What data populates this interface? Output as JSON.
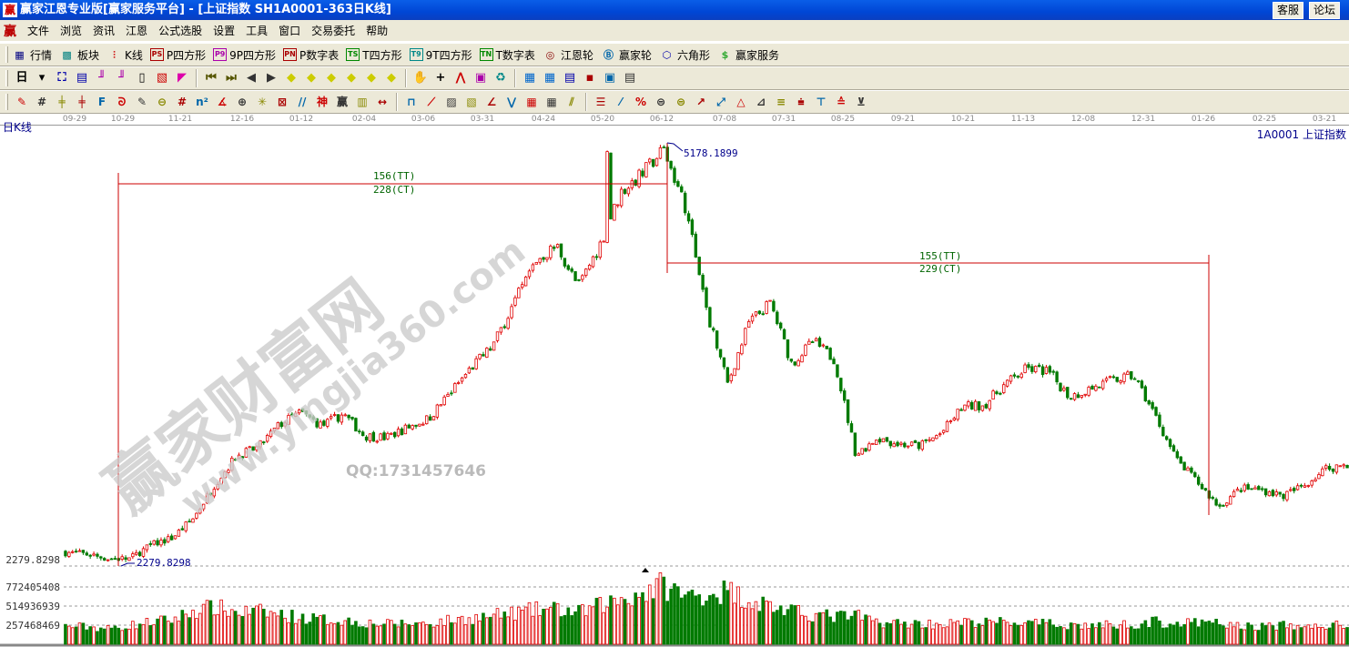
{
  "window": {
    "title": "赢家江恩专业版[赢家服务平台] - [上证指数   SH1A0001-363日K线]",
    "logo": "赢",
    "buttons": [
      "客服",
      "论坛"
    ]
  },
  "menu": {
    "logo": "赢",
    "items": [
      "文件",
      "浏览",
      "资讯",
      "江恩",
      "公式选股",
      "设置",
      "工具",
      "窗口",
      "交易委托",
      "帮助"
    ]
  },
  "toolbar1": [
    {
      "icon": "quote-grid-icon",
      "glyph": "▦",
      "label": "行情",
      "color": "#000080"
    },
    {
      "icon": "sector-blocks-icon",
      "glyph": "▩",
      "label": "板块",
      "color": "#008080"
    },
    {
      "icon": "kline-icon",
      "glyph": "⫶",
      "label": "K线",
      "color": "#c00"
    },
    {
      "icon": "ps-icon",
      "glyph": "PS",
      "label": "P四方形",
      "color": "#a00"
    },
    {
      "icon": "p9-icon",
      "glyph": "P9",
      "label": "9P四方形",
      "color": "#a0a"
    },
    {
      "icon": "pn-icon",
      "glyph": "PN",
      "label": "P数字表",
      "color": "#a00"
    },
    {
      "icon": "ts-icon",
      "glyph": "TS",
      "label": "T四方形",
      "color": "#080"
    },
    {
      "icon": "t9-icon",
      "glyph": "T9",
      "label": "9T四方形",
      "color": "#088"
    },
    {
      "icon": "tn-icon",
      "glyph": "TN",
      "label": "T数字表",
      "color": "#080"
    },
    {
      "icon": "gann-wheel-icon",
      "glyph": "◎",
      "label": "江恩轮",
      "color": "#800"
    },
    {
      "icon": "yingjia-wheel-icon",
      "glyph": "Ⓑ",
      "label": "赢家轮",
      "color": "#06a"
    },
    {
      "icon": "hexagon-icon",
      "glyph": "⬡",
      "label": "六角形",
      "color": "#00a"
    },
    {
      "icon": "dollar-icon",
      "glyph": "$",
      "label": "赢家服务",
      "color": "#3a3"
    }
  ],
  "toolbar2": {
    "period": "日",
    "icons": [
      "network-icon",
      "notepad-icon",
      "kline3-icon",
      "kline9-icon",
      "candle-icon",
      "map-icon",
      "flag-icon",
      "first-icon",
      "last-icon",
      "prev-icon",
      "next-icon",
      "diamond-left-icon",
      "diamond-right-icon",
      "diamond-h-icon",
      "diamond-x-icon",
      "diamond-star-icon",
      "diamond-cross-icon",
      "hand-icon",
      "crosshair-icon",
      "line-tool-icon",
      "box-tool-icon",
      "recycle-icon",
      "calendar-icon",
      "calculator-icon",
      "notes-icon",
      "save-icon",
      "network-tool-icon",
      "printer-icon"
    ],
    "glyphs": [
      "⛶",
      "▤",
      "╜",
      "╜",
      "▯",
      "▧",
      "◤",
      "⏮",
      "⏭",
      "◀",
      "▶",
      "◆",
      "◆",
      "◆",
      "◆",
      "◆",
      "◆",
      "✋",
      "+",
      "⋀",
      "▣",
      "♻",
      "▦",
      "▦",
      "▤",
      "▪",
      "▣",
      "▤"
    ]
  },
  "toolbar3": {
    "icons": [
      "pen-icon",
      "grid-lines-icon",
      "gold-lines-icon",
      "gold-lines2-icon",
      "f-lines-icon",
      "spiral-icon",
      "pen2-icon",
      "circle-icon",
      "hash-icon",
      "n2-icon",
      "angle-icon",
      "target-icon",
      "star-icon",
      "square-icon",
      "slope-icon",
      "shen-icon",
      "ying-icon",
      "ruler-icon",
      "span-icon",
      "box-icon",
      "fan-icon",
      "fan-box-icon",
      "fan-box2-icon",
      "angle2-icon",
      "zigzag-icon",
      "grid9-icon",
      "grid9b-icon",
      "parallel-icon",
      "table-icon",
      "percent-chart-icon",
      "percent-icon",
      "gold-icon",
      "gold2-icon",
      "gold3-icon",
      "arrow-icon",
      "tri-icon",
      "tri2-icon",
      "lines-icon",
      "lines2-icon",
      "lines3-icon",
      "lines4-icon",
      "lines5-icon"
    ],
    "glyphs": [
      "✎",
      "#",
      "╪",
      "╪",
      "F",
      "ᘐ",
      "✎",
      "⊖",
      "#",
      "n²",
      "∡",
      "⊕",
      "✳",
      "⊠",
      "//",
      "神",
      "赢",
      "▥",
      "↔",
      "⊓",
      "⟋",
      "▨",
      "▧",
      "∠",
      "⋁",
      "▦",
      "▦",
      "⫽",
      "☰",
      "⁄",
      "%",
      "⊜",
      "⊜",
      "↗",
      "⤢",
      "△",
      "⊿",
      "≡",
      "⩧",
      "⊤",
      "≙",
      "⊻"
    ]
  },
  "date_axis": [
    "09-29",
    "10-29",
    "11-21",
    "12-16",
    "01-12",
    "02-04",
    "03-06",
    "03-31",
    "04-24",
    "05-20",
    "06-12",
    "07-08",
    "07-31",
    "08-25",
    "09-21",
    "10-21",
    "11-13",
    "12-08",
    "12-31",
    "01-26",
    "02-25",
    "03-21"
  ],
  "chart_label": "日K线",
  "symbol_label": "1A0001 上证指数",
  "watermark": {
    "text": "赢家财富网",
    "url": "www.yingjia360.com",
    "qq": "QQ:1731457646"
  },
  "colors": {
    "up": "#e00000",
    "down": "#007a00",
    "annot": "#cc0000",
    "marker": "#00008b",
    "count": "#006400"
  },
  "chart_data": {
    "type": "candlestick",
    "price_low": 2279.8298,
    "price_high": 5178.1899,
    "low_label": "2279.8298",
    "high_label": "5178.1899",
    "close_samples": [
      2373,
      2361,
      2330,
      2330,
      2423,
      2473,
      2610,
      2841,
      3034,
      3090,
      3246,
      3333,
      3240,
      3321,
      3171,
      3159,
      3227,
      3290,
      3464,
      3639,
      3788,
      4081,
      4368,
      4474,
      4193,
      4474,
      4842,
      4966,
      5135,
      4748,
      4038,
      3527,
      3950,
      4081,
      3664,
      3819,
      3695,
      3040,
      3159,
      3115,
      3103,
      3190,
      3371,
      3383,
      3527,
      3632,
      3614,
      3439,
      3495,
      3551,
      3583,
      3314,
      3009,
      2853,
      2685,
      2810,
      2803,
      2760,
      2834,
      2947,
      2978
    ],
    "volume_samples": [
      240000000.0,
      235000000.0,
      210000000.0,
      250000000.0,
      300000000.0,
      330000000.0,
      450000000.0,
      500000000.0,
      430000000.0,
      440000000.0,
      400000000.0,
      360000000.0,
      330000000.0,
      320000000.0,
      290000000.0,
      270000000.0,
      280000000.0,
      280000000.0,
      320000000.0,
      350000000.0,
      380000000.0,
      420000000.0,
      460000000.0,
      470000000.0,
      420000000.0,
      520000000.0,
      610000000.0,
      690000000.0,
      800000000.0,
      640000000.0,
      680000000.0,
      720000000.0,
      600000000.0,
      520000000.0,
      430000000.0,
      400000000.0,
      370000000.0,
      380000000.0,
      300000000.0,
      280000000.0,
      280000000.0,
      270000000.0,
      290000000.0,
      290000000.0,
      300000000.0,
      280000000.0,
      270000000.0,
      260000000.0,
      250000000.0,
      260000000.0,
      270000000.0,
      300000000.0,
      280000000.0,
      280000000.0,
      280000000.0,
      240000000.0,
      240000000.0,
      250000000.0,
      230000000.0,
      250000000.0,
      260000000.0
    ],
    "bars": 363,
    "price_axis_label": "2279.8298",
    "volume_axis_labels": [
      "772405408",
      "514936939",
      "257468469"
    ],
    "volume_axis_values": [
      772405408,
      514936939,
      257468469
    ],
    "cycles": [
      {
        "tt": "156(TT)",
        "ct": "228(CT)"
      },
      {
        "tt": "155(TT)",
        "ct": "229(CT)"
      }
    ]
  }
}
